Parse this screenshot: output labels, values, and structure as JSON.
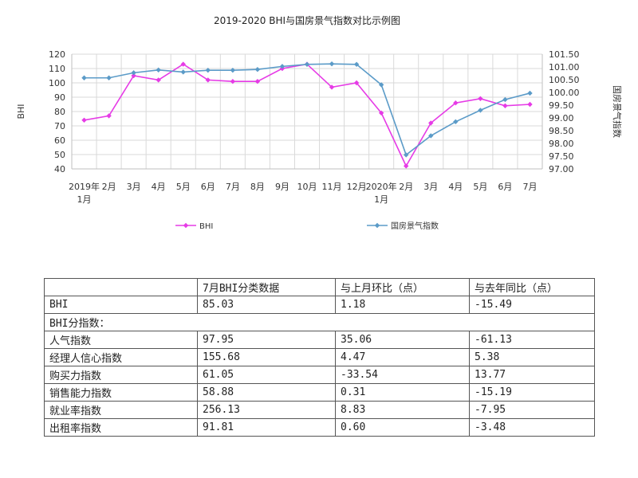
{
  "chart_data": {
    "type": "line",
    "title": "2019-2020 BHI与国房景气指数对比示例图",
    "categories": [
      "2019年1月",
      "2月",
      "3月",
      "4月",
      "5月",
      "6月",
      "7月",
      "8月",
      "9月",
      "10月",
      "11月",
      "12月",
      "2020年1月",
      "2月",
      "3月",
      "4月",
      "5月",
      "6月",
      "7月"
    ],
    "x_tick_lines": [
      [
        "2019年",
        "1月"
      ],
      [
        "2月"
      ],
      [
        "3月"
      ],
      [
        "4月"
      ],
      [
        "5月"
      ],
      [
        "6月"
      ],
      [
        "7月"
      ],
      [
        "8月"
      ],
      [
        "9月"
      ],
      [
        "10月"
      ],
      [
        "11月"
      ],
      [
        "12月"
      ],
      [
        "2020年",
        "1月"
      ],
      [
        "2月"
      ],
      [
        "3月"
      ],
      [
        "4月"
      ],
      [
        "5月"
      ],
      [
        "6月"
      ],
      [
        "7月"
      ]
    ],
    "left_axis": {
      "label": "BHI",
      "ylim": [
        40,
        120
      ],
      "ticks": [
        "40",
        "50",
        "60",
        "70",
        "80",
        "90",
        "100",
        "110",
        "120"
      ]
    },
    "right_axis": {
      "label": "国房景气指数",
      "ylim": [
        97.0,
        101.5
      ],
      "ticks": [
        "97.00",
        "97.50",
        "98.00",
        "98.50",
        "99.00",
        "99.50",
        "100.00",
        "100.50",
        "101.00",
        "101.50"
      ]
    },
    "grid": true,
    "legend_position": "bottom",
    "series": [
      {
        "name": "BHI",
        "axis": "left",
        "color": "#e63be6",
        "marker": "diamond",
        "values": [
          74,
          77,
          105,
          102,
          113,
          102,
          101,
          101,
          110,
          113,
          97,
          100,
          79,
          42,
          72,
          86,
          89,
          84,
          85
        ]
      },
      {
        "name": "国房景气指数",
        "axis": "right",
        "color": "#5b9bc8",
        "marker": "diamond",
        "values": [
          100.57,
          100.57,
          100.77,
          100.88,
          100.8,
          100.87,
          100.87,
          100.9,
          101.02,
          101.1,
          101.12,
          101.1,
          100.3,
          97.55,
          98.3,
          98.85,
          99.3,
          99.72,
          99.97
        ]
      }
    ]
  },
  "table": {
    "header": [
      "",
      "7月BHI分类数据",
      "与上月环比（点）",
      "与去年同比（点）"
    ],
    "rows": [
      [
        "BHI",
        "85.03",
        "1.18",
        "-15.49"
      ],
      [
        "BHI分指数："
      ],
      [
        "人气指数",
        "97.95",
        "35.06",
        "-61.13"
      ],
      [
        "经理人信心指数",
        "155.68",
        "4.47",
        "5.38"
      ],
      [
        "购买力指数",
        "61.05",
        "-33.54",
        "13.77"
      ],
      [
        "销售能力指数",
        "58.88",
        "0.31",
        "-15.19"
      ],
      [
        "就业率指数",
        "256.13",
        "8.83",
        "-7.95"
      ],
      [
        "出租率指数",
        "91.81",
        "0.60",
        "-3.48"
      ]
    ]
  }
}
